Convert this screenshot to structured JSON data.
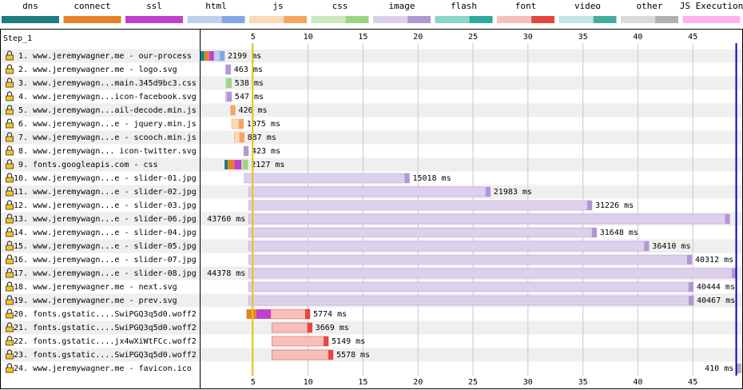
{
  "chart_data": {
    "type": "waterfall",
    "step": "Step_1",
    "legend": [
      {
        "name": "dns",
        "colors": [
          "#1f7c83"
        ]
      },
      {
        "name": "connect",
        "colors": [
          "#e58226"
        ]
      },
      {
        "name": "ssl",
        "colors": [
          "#c141cd"
        ]
      },
      {
        "name": "html",
        "colors": [
          "#bdd0ee",
          "#82a8e4"
        ]
      },
      {
        "name": "js",
        "colors": [
          "#fbd9b6",
          "#f4a560"
        ]
      },
      {
        "name": "css",
        "colors": [
          "#cbe8bc",
          "#9cd483"
        ]
      },
      {
        "name": "image",
        "colors": [
          "#ddd0ea",
          "#b197d6"
        ]
      },
      {
        "name": "flash",
        "colors": [
          "#8ad4c9",
          "#2ea99f"
        ]
      },
      {
        "name": "font",
        "colors": [
          "#f5c0b9",
          "#e5463e"
        ]
      },
      {
        "name": "video",
        "colors": [
          "#c3e7e1",
          "#46ad9d"
        ]
      },
      {
        "name": "other",
        "colors": [
          "#dadada",
          "#b1b1b1"
        ]
      },
      {
        "name": "JS Execution",
        "colors": [
          "#ffb2f0"
        ]
      }
    ],
    "xlim": [
      0,
      49.2
    ],
    "xticks": [
      5,
      10,
      15,
      20,
      25,
      30,
      35,
      40,
      45
    ],
    "markers": [
      {
        "x": 4.95,
        "color": "#e8c31c"
      },
      {
        "x": 48.95,
        "color": "#0000c8"
      }
    ],
    "requests": [
      {
        "label": "1. www.jeremywagner.me - our-process",
        "type": "html",
        "start": 0.2,
        "dns": 0.36,
        "connect": 0.44,
        "ssl": 0.44,
        "duration": 2.199,
        "value_label": "2199 ms"
      },
      {
        "label": "2. www.jeremywagner.me - logo.svg",
        "type": "image",
        "start": 2.5,
        "duration": 0.463,
        "value_label": "463 ms"
      },
      {
        "label": "3. www.jeremywagn...main.345d9bc3.css",
        "type": "css",
        "start": 2.5,
        "duration": 0.538,
        "value_label": "538 ms"
      },
      {
        "label": "4. www.jeremywagn...icon-facebook.svg",
        "type": "image",
        "start": 2.5,
        "duration": 0.547,
        "value_label": "547 ms"
      },
      {
        "label": "5. www.jeremywagn...ail-decode.min.js",
        "type": "js",
        "start": 2.95,
        "duration": 0.426,
        "value_label": "426 ms"
      },
      {
        "label": "6. www.jeremywagn...e - jquery.min.js",
        "type": "js",
        "start": 3.05,
        "duration": 1.075,
        "value_label": "1075 ms"
      },
      {
        "label": "7. www.jeremywagn...e - scooch.min.js",
        "type": "js",
        "start": 3.3,
        "duration": 0.887,
        "value_label": "887 ms"
      },
      {
        "label": "8. www.jeremywagn... icon-twitter.svg",
        "type": "image",
        "start": 4.15,
        "duration": 0.423,
        "value_label": "423 ms"
      },
      {
        "label": "9. fonts.googleapis.com - css",
        "type": "css",
        "start": 2.4,
        "dns": 0.3,
        "connect": 0.6,
        "ssl": 0.65,
        "duration": 2.127,
        "value_label": "2127 ms"
      },
      {
        "label": "10. www.jeremywagn...e - slider-01.jpg",
        "type": "image",
        "start": 4.2,
        "duration": 15.018,
        "value_label": "15018 ms"
      },
      {
        "label": "11. www.jeremywagn...e - slider-02.jpg",
        "type": "image",
        "start": 4.6,
        "duration": 21.983,
        "value_label": "21983 ms"
      },
      {
        "label": "12. www.jeremywagn...e - slider-03.jpg",
        "type": "image",
        "start": 4.6,
        "duration": 31.226,
        "value_label": "31226 ms"
      },
      {
        "label": "13. www.jeremywagn...e - slider-06.jpg",
        "type": "image",
        "start": 4.6,
        "duration": 43.76,
        "value_label": "43760 ms"
      },
      {
        "label": "14. www.jeremywagn...e - slider-04.jpg",
        "type": "image",
        "start": 4.6,
        "duration": 31.648,
        "value_label": "31648 ms"
      },
      {
        "label": "15. www.jeremywagn...e - slider-05.jpg",
        "type": "image",
        "start": 4.6,
        "duration": 36.41,
        "value_label": "36410 ms"
      },
      {
        "label": "16. www.jeremywagn...e - slider-07.jpg",
        "type": "image",
        "start": 4.6,
        "duration": 40.312,
        "value_label": "40312 ms"
      },
      {
        "label": "17. www.jeremywagn...e - slider-08.jpg",
        "type": "image",
        "start": 4.6,
        "duration": 44.378,
        "value_label": "44378 ms"
      },
      {
        "label": "18. www.jeremywagner.me - next.svg",
        "type": "image",
        "start": 4.6,
        "duration": 40.444,
        "value_label": "40444 ms"
      },
      {
        "label": "19. www.jeremywagner.me - prev.svg",
        "type": "image",
        "start": 4.6,
        "duration": 40.467,
        "value_label": "40467 ms"
      },
      {
        "label": "20. fonts.gstatic....SwiPGQ3q5d0.woff2",
        "type": "font",
        "start": 4.4,
        "connect": 0.9,
        "ssl": 1.3,
        "duration": 5.774,
        "value_label": "5774 ms"
      },
      {
        "label": "21. fonts.gstatic....SwiPGQ3q5d0.woff2",
        "type": "font",
        "start": 6.7,
        "duration": 3.669,
        "value_label": "3669 ms"
      },
      {
        "label": "22. fonts.gstatic....jx4wXiWtFCc.woff2",
        "type": "font",
        "start": 6.7,
        "duration": 5.149,
        "value_label": "5149 ms"
      },
      {
        "label": "23. fonts.gstatic....SwiPGQ3q5d0.woff2",
        "type": "font",
        "start": 6.7,
        "duration": 5.578,
        "value_label": "5578 ms"
      },
      {
        "label": "24. www.jeremywagner.me - favicon.ico",
        "type": "other",
        "start": 49.0,
        "duration": 0.41,
        "value_label": "410 ms"
      }
    ]
  }
}
